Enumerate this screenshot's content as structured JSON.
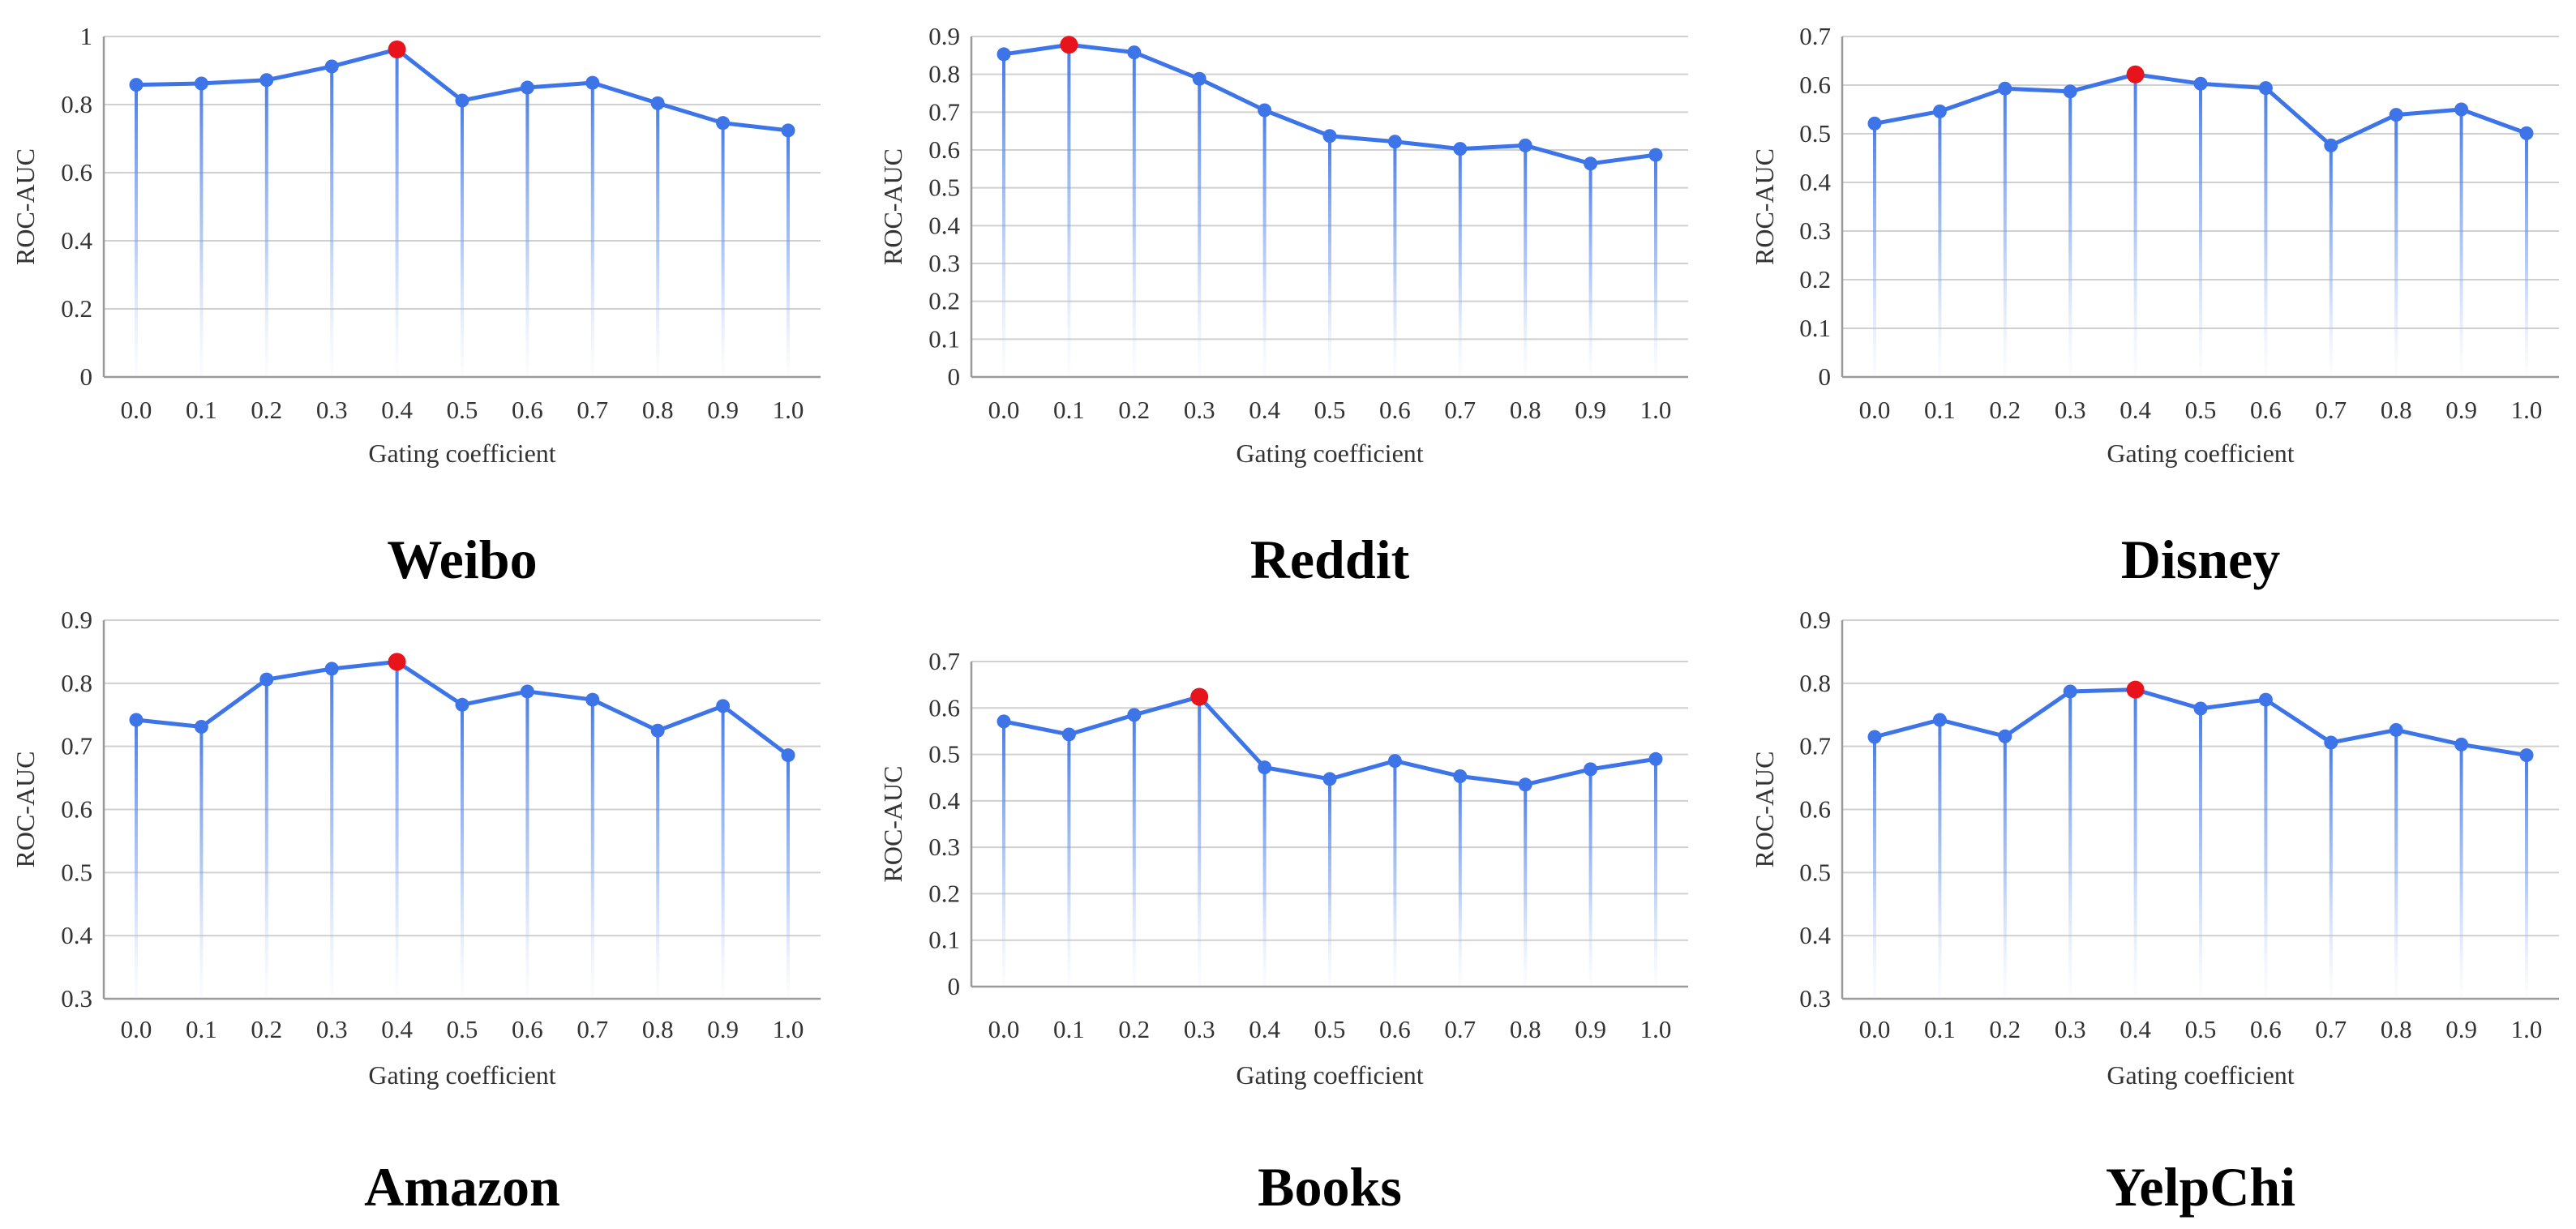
{
  "figure": {
    "common": {
      "xlabel": "Gating coefficient",
      "ylabel": "ROC-AUC",
      "x_ticks": [
        "0.0",
        "0.1",
        "0.2",
        "0.3",
        "0.4",
        "0.5",
        "0.6",
        "0.7",
        "0.8",
        "0.9",
        "1.0"
      ]
    },
    "colors": {
      "line": "#3d74e8",
      "marker": "#3d74e8",
      "highlight": "#e8141c",
      "grid": "#d0d0d0",
      "axis": "#9a9a9a"
    }
  },
  "chart_data": [
    {
      "type": "line",
      "title": "Weibo",
      "xlabel": "Gating coefficient",
      "ylabel": "ROC-AUC",
      "x": [
        0.0,
        0.1,
        0.2,
        0.3,
        0.4,
        0.5,
        0.6,
        0.7,
        0.8,
        0.9,
        1.0
      ],
      "values": [
        0.858,
        0.862,
        0.872,
        0.912,
        0.962,
        0.812,
        0.85,
        0.864,
        0.804,
        0.746,
        0.724
      ],
      "best_index": 4,
      "ylim": [
        0,
        1
      ],
      "y_ticks": [
        "0",
        "0.2",
        "0.4",
        "0.6",
        "0.8",
        "1"
      ],
      "grid": true
    },
    {
      "type": "line",
      "title": "Reddit",
      "xlabel": "Gating coefficient",
      "ylabel": "ROC-AUC",
      "x": [
        0.0,
        0.1,
        0.2,
        0.3,
        0.4,
        0.5,
        0.6,
        0.7,
        0.8,
        0.9,
        1.0
      ],
      "values": [
        0.853,
        0.878,
        0.858,
        0.788,
        0.705,
        0.637,
        0.622,
        0.603,
        0.612,
        0.564,
        0.587
      ],
      "best_index": 1,
      "ylim": [
        0,
        0.9
      ],
      "y_ticks": [
        "0",
        "0.1",
        "0.2",
        "0.3",
        "0.4",
        "0.5",
        "0.6",
        "0.7",
        "0.8",
        "0.9"
      ],
      "grid": true
    },
    {
      "type": "line",
      "title": "Disney",
      "xlabel": "Gating coefficient",
      "ylabel": "ROC-AUC",
      "x": [
        0.0,
        0.1,
        0.2,
        0.3,
        0.4,
        0.5,
        0.6,
        0.7,
        0.8,
        0.9,
        1.0
      ],
      "values": [
        0.521,
        0.546,
        0.593,
        0.587,
        0.622,
        0.603,
        0.594,
        0.476,
        0.539,
        0.55,
        0.501
      ],
      "best_index": 4,
      "ylim": [
        0,
        0.7
      ],
      "y_ticks": [
        "0",
        "0.1",
        "0.2",
        "0.3",
        "0.4",
        "0.5",
        "0.6",
        "0.7"
      ],
      "grid": true
    },
    {
      "type": "line",
      "title": "Amazon",
      "xlabel": "Gating coefficient",
      "ylabel": "ROC-AUC",
      "x": [
        0.0,
        0.1,
        0.2,
        0.3,
        0.4,
        0.5,
        0.6,
        0.7,
        0.8,
        0.9,
        1.0
      ],
      "values": [
        0.742,
        0.731,
        0.806,
        0.823,
        0.834,
        0.766,
        0.787,
        0.774,
        0.725,
        0.764,
        0.686
      ],
      "best_index": 4,
      "ylim": [
        0.3,
        0.9
      ],
      "y_ticks": [
        "0.3",
        "0.4",
        "0.5",
        "0.6",
        "0.7",
        "0.8",
        "0.9"
      ],
      "grid": true
    },
    {
      "type": "line",
      "title": "Books",
      "xlabel": "Gating coefficient",
      "ylabel": "ROC-AUC",
      "x": [
        0.0,
        0.1,
        0.2,
        0.3,
        0.4,
        0.5,
        0.6,
        0.7,
        0.8,
        0.9,
        1.0
      ],
      "values": [
        0.571,
        0.543,
        0.585,
        0.624,
        0.472,
        0.447,
        0.486,
        0.453,
        0.435,
        0.468,
        0.49
      ],
      "best_index": 3,
      "ylim": [
        0,
        0.7
      ],
      "y_ticks": [
        "0",
        "0.1",
        "0.2",
        "0.3",
        "0.4",
        "0.5",
        "0.6",
        "0.7"
      ],
      "grid": true
    },
    {
      "type": "line",
      "title": "YelpChi",
      "xlabel": "Gating coefficient",
      "ylabel": "ROC-AUC",
      "x": [
        0.0,
        0.1,
        0.2,
        0.3,
        0.4,
        0.5,
        0.6,
        0.7,
        0.8,
        0.9,
        1.0
      ],
      "values": [
        0.715,
        0.742,
        0.716,
        0.787,
        0.79,
        0.76,
        0.774,
        0.706,
        0.726,
        0.703,
        0.686
      ],
      "best_index": 4,
      "ylim": [
        0.3,
        0.9
      ],
      "y_ticks": [
        "0.3",
        "0.4",
        "0.5",
        "0.6",
        "0.7",
        "0.8",
        "0.9"
      ],
      "grid": true
    }
  ]
}
